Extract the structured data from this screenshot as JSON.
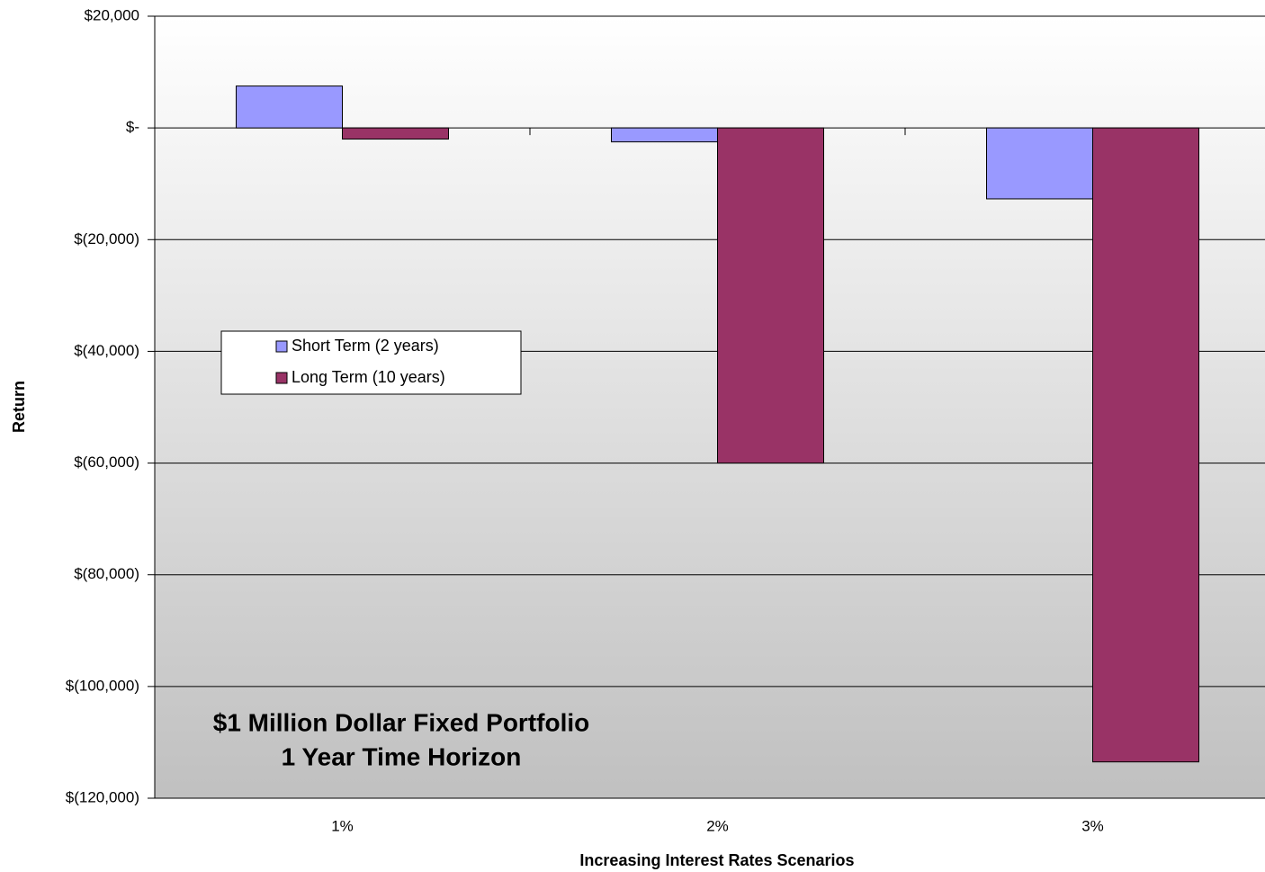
{
  "chart_data": {
    "type": "bar",
    "categories": [
      "1%",
      "2%",
      "3%"
    ],
    "series": [
      {
        "name": "Short Term (2 years)",
        "color": "#9999ff",
        "values": [
          7500,
          -2500,
          -12700
        ]
      },
      {
        "name": "Long Term (10 years)",
        "color": "#993366",
        "values": [
          -2000,
          -60000,
          -113500
        ]
      }
    ],
    "ylim": [
      -120000,
      20000
    ],
    "yticks": [
      {
        "value": -120000,
        "label": "$(120,000)"
      },
      {
        "value": -100000,
        "label": "$(100,000)"
      },
      {
        "value": -80000,
        "label": "$(80,000)"
      },
      {
        "value": -60000,
        "label": "$(60,000)"
      },
      {
        "value": -40000,
        "label": "$(40,000)"
      },
      {
        "value": -20000,
        "label": "$(20,000)"
      },
      {
        "value": 0,
        "label": "$-"
      },
      {
        "value": 20000,
        "label": "$20,000"
      }
    ],
    "grid": true,
    "xlabel": "Increasing  Interest Rates Scenarios",
    "ylabel": "Return",
    "annotations": [
      "$1 Million Dollar Fixed Portfolio",
      "1 Year Time Horizon"
    ],
    "legend": "upper-left"
  }
}
